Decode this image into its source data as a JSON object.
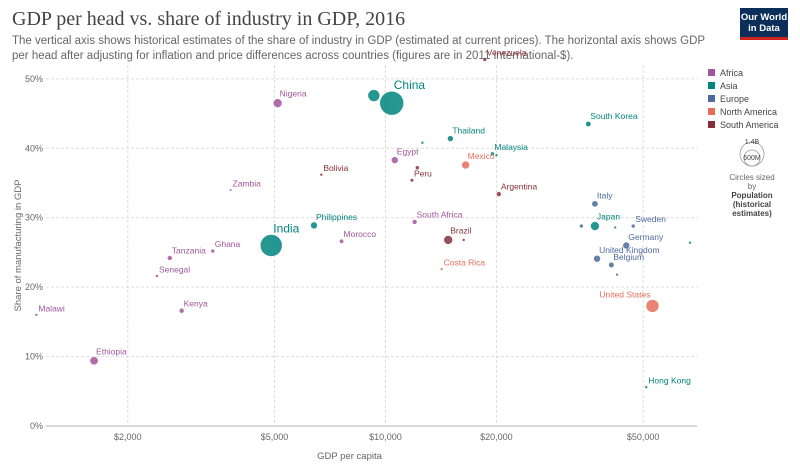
{
  "title": "GDP per head vs. share of industry in GDP, 2016",
  "subtitle": "The vertical axis shows historical estimates of the share of industry in GDP (estimated at current prices). The horizontal axis shows GDP per head after adjusting for inflation and price differences across countries (figures are in 2011 international-$).",
  "logo": {
    "line1": "Our World",
    "line2": "in Data"
  },
  "legend": {
    "items": [
      {
        "label": "Africa",
        "color": "#a2559c"
      },
      {
        "label": "Asia",
        "color": "#00847e"
      },
      {
        "label": "Europe",
        "color": "#4c6a9c"
      },
      {
        "label": "North America",
        "color": "#e56e5a"
      },
      {
        "label": "South America",
        "color": "#883039"
      }
    ],
    "size_top": "1.4B",
    "size_bottom": "600M",
    "size_caption": "Circles sized by",
    "size_bold": "Population (historical estimates)"
  },
  "chart_data": {
    "type": "scatter",
    "xlabel": "GDP per capita",
    "ylabel": "Share of manufacturing in GDP",
    "xscale": "log",
    "xlim": [
      1200,
      70000
    ],
    "ylim": [
      0,
      52
    ],
    "xticks": [
      {
        "value": 2000,
        "label": "$2,000"
      },
      {
        "value": 5000,
        "label": "$5,000"
      },
      {
        "value": 10000,
        "label": "$10,000"
      },
      {
        "value": 20000,
        "label": "$20,000"
      },
      {
        "value": 50000,
        "label": "$50,000"
      }
    ],
    "yticks": [
      {
        "value": 0,
        "label": "0%"
      },
      {
        "value": 10,
        "label": "10%"
      },
      {
        "value": 20,
        "label": "20%"
      },
      {
        "value": 30,
        "label": "30%"
      },
      {
        "value": 40,
        "label": "40%"
      },
      {
        "value": 50,
        "label": "50%"
      }
    ],
    "grid": true,
    "legend_position": "right",
    "colors": {
      "Africa": "#a2559c",
      "Asia": "#00847e",
      "Europe": "#4c6a9c",
      "North America": "#e56e5a",
      "South America": "#883039"
    },
    "points": [
      {
        "label": "China",
        "region": "Asia",
        "x": 10400,
        "y": 46.5,
        "r": 12,
        "fs": 12
      },
      {
        "label": "",
        "region": "Asia",
        "x": 9300,
        "y": 47.6,
        "r": 6
      },
      {
        "label": "India",
        "region": "Asia",
        "x": 4900,
        "y": 26,
        "r": 11,
        "fs": 12
      },
      {
        "label": "Nigeria",
        "region": "Africa",
        "x": 5100,
        "y": 46.5,
        "r": 4.5
      },
      {
        "label": "Venezuela",
        "region": "South America",
        "x": 18600,
        "y": 52.8,
        "r": 2
      },
      {
        "label": "South Korea",
        "region": "Asia",
        "x": 35500,
        "y": 43.5,
        "r": 2.8
      },
      {
        "label": "Thailand",
        "region": "Asia",
        "x": 15000,
        "y": 41.4,
        "r": 3
      },
      {
        "label": "",
        "region": "Asia",
        "x": 12600,
        "y": 40.8,
        "r": 1.5
      },
      {
        "label": "Malaysia",
        "region": "Asia",
        "x": 19500,
        "y": 39.2,
        "r": 2
      },
      {
        "label": "",
        "region": "Asia",
        "x": 20000,
        "y": 39,
        "r": 1.5
      },
      {
        "label": "Egypt",
        "region": "Africa",
        "x": 10600,
        "y": 38.3,
        "r": 3.5
      },
      {
        "label": "Mexico",
        "region": "North America",
        "x": 16500,
        "y": 37.6,
        "r": 4
      },
      {
        "label": "",
        "region": "South America",
        "x": 12200,
        "y": 37.2,
        "r": 2
      },
      {
        "label": "Peru",
        "region": "South America",
        "x": 11800,
        "y": 35.4,
        "r": 1.8
      },
      {
        "label": "Bolivia",
        "region": "South America",
        "x": 6700,
        "y": 36.2,
        "r": 1.5
      },
      {
        "label": "Argentina",
        "region": "South America",
        "x": 20300,
        "y": 33.4,
        "r": 2.5
      },
      {
        "label": "Zambia",
        "region": "Africa",
        "x": 3800,
        "y": 34,
        "r": 1.3
      },
      {
        "label": "Italy",
        "region": "Europe",
        "x": 37000,
        "y": 32,
        "r": 3.2
      },
      {
        "label": "South Africa",
        "region": "Africa",
        "x": 12000,
        "y": 29.4,
        "r": 2.5
      },
      {
        "label": "Philippines",
        "region": "Asia",
        "x": 6400,
        "y": 28.9,
        "r": 3.5
      },
      {
        "label": "Japan",
        "region": "Asia",
        "x": 37000,
        "y": 28.8,
        "r": 4.5
      },
      {
        "label": "",
        "region": "Europe",
        "x": 34000,
        "y": 28.8,
        "r": 2
      },
      {
        "label": "",
        "region": "Europe",
        "x": 42000,
        "y": 28.6,
        "r": 1.5
      },
      {
        "label": "Sweden",
        "region": "Europe",
        "x": 47000,
        "y": 28.8,
        "r": 2
      },
      {
        "label": "Brazil",
        "region": "South America",
        "x": 14800,
        "y": 26.8,
        "r": 4.5
      },
      {
        "label": "",
        "region": "South America",
        "x": 16300,
        "y": 26.8,
        "r": 1.5
      },
      {
        "label": "Morocco",
        "region": "Africa",
        "x": 7600,
        "y": 26.6,
        "r": 2.2
      },
      {
        "label": "Germany",
        "region": "Europe",
        "x": 45000,
        "y": 26,
        "r": 3.5
      },
      {
        "label": "",
        "region": "Asia",
        "x": 67000,
        "y": 26.4,
        "r": 1.5
      },
      {
        "label": "Ghana",
        "region": "Africa",
        "x": 3400,
        "y": 25.2,
        "r": 2
      },
      {
        "label": "Tanzania",
        "region": "Africa",
        "x": 2600,
        "y": 24.2,
        "r": 2.5
      },
      {
        "label": "United Kingdom",
        "region": "Europe",
        "x": 37500,
        "y": 24.1,
        "r": 3.5
      },
      {
        "label": "Belgium",
        "region": "Europe",
        "x": 41000,
        "y": 23.2,
        "r": 2.8
      },
      {
        "label": "",
        "region": "Europe",
        "x": 42500,
        "y": 21.8,
        "r": 1.5
      },
      {
        "label": "Costa Rica",
        "region": "North America",
        "x": 14200,
        "y": 22.6,
        "r": 1.5
      },
      {
        "label": "Senegal",
        "region": "Africa",
        "x": 2400,
        "y": 21.6,
        "r": 1.6
      },
      {
        "label": "United States",
        "region": "North America",
        "x": 53000,
        "y": 17.3,
        "r": 6.5
      },
      {
        "label": "Kenya",
        "region": "Africa",
        "x": 2800,
        "y": 16.6,
        "r": 2.5
      },
      {
        "label": "Malawi",
        "region": "Africa",
        "x": 1130,
        "y": 16,
        "r": 1.5
      },
      {
        "label": "Ethiopia",
        "region": "Africa",
        "x": 1620,
        "y": 9.4,
        "r": 4.2
      },
      {
        "label": "Hong Kong",
        "region": "Asia",
        "x": 51000,
        "y": 5.6,
        "r": 1.5
      }
    ]
  }
}
